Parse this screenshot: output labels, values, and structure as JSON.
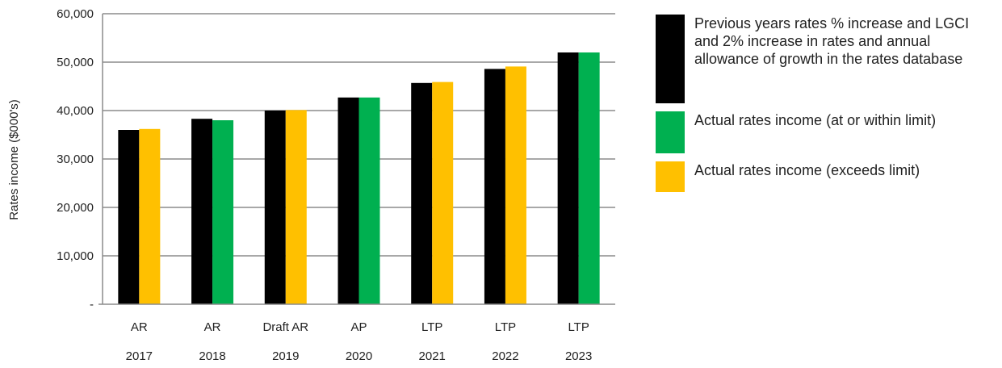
{
  "chart_data": {
    "type": "bar",
    "ylabel": "Rates income ($000's)",
    "ylim": [
      0,
      60000
    ],
    "yticks": [
      {
        "value": 0,
        "label": "-"
      },
      {
        "value": 10000,
        "label": "10,000"
      },
      {
        "value": 20000,
        "label": "20,000"
      },
      {
        "value": 30000,
        "label": "30,000"
      },
      {
        "value": 40000,
        "label": "40,000"
      },
      {
        "value": 50000,
        "label": "50,000"
      },
      {
        "value": 60000,
        "label": "60,000"
      }
    ],
    "categories": [
      {
        "label": "AR",
        "year": "2017"
      },
      {
        "label": "AR",
        "year": "2018"
      },
      {
        "label": "Draft AR",
        "year": "2019"
      },
      {
        "label": "AP",
        "year": "2020"
      },
      {
        "label": "LTP",
        "year": "2021"
      },
      {
        "label": "LTP",
        "year": "2022"
      },
      {
        "label": "LTP",
        "year": "2023"
      }
    ],
    "series": [
      {
        "name": "Previous years rates % increase and LGCI and 2% increase in rates and annual allowance of growth in the rates database",
        "color": "#000000",
        "values": [
          36000,
          38300,
          40000,
          42700,
          45700,
          48600,
          52000
        ]
      },
      {
        "name": "Actual rates income",
        "values": [
          36200,
          38000,
          40100,
          42700,
          45900,
          49100,
          52000
        ],
        "point_status": [
          "exceeds",
          "within",
          "exceeds",
          "within",
          "exceeds",
          "exceeds",
          "within"
        ]
      }
    ],
    "status_colors": {
      "within": "#00B050",
      "exceeds": "#FFC000"
    },
    "grid": true,
    "legend_position": "right"
  },
  "legend": [
    {
      "label": "Previous years rates % increase and LGCI and 2% increase in rates and annual allowance of growth in the rates database",
      "color": "#000000"
    },
    {
      "label": "Actual rates income (at or within limit)",
      "color": "#00B050"
    },
    {
      "label": "Actual  rates income (exceeds limit)",
      "color": "#FFC000"
    }
  ]
}
